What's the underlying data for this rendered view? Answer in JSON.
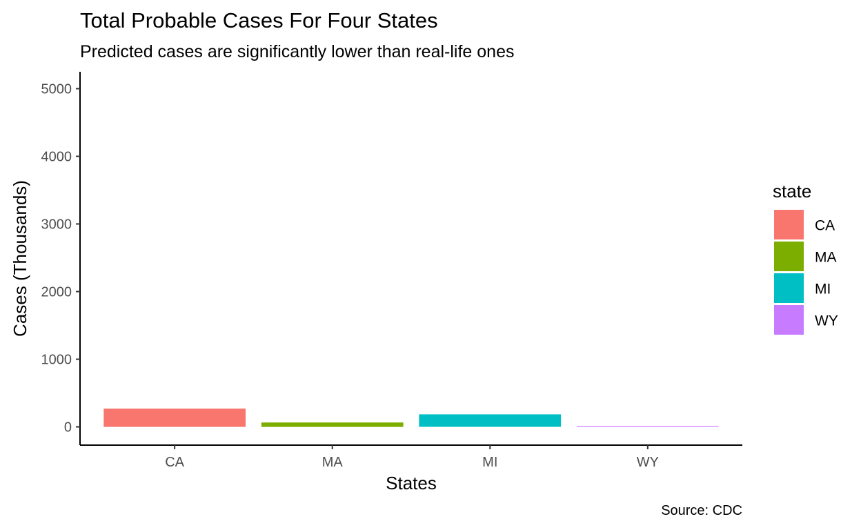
{
  "chart_data": {
    "type": "bar",
    "title": "Total Probable Cases For Four States",
    "subtitle": "Predicted cases are significantly lower than real-life ones",
    "caption": "Source: CDC",
    "xlabel": "States",
    "ylabel": "Cases (Thousands)",
    "categories": [
      "CA",
      "MA",
      "MI",
      "WY"
    ],
    "values": [
      270,
      65,
      185,
      12
    ],
    "colors": [
      "#F8766D",
      "#7CAE00",
      "#00BFC4",
      "#C77CFF"
    ],
    "ylim": [
      -270,
      5250
    ],
    "yticks": [
      0,
      1000,
      2000,
      3000,
      4000,
      5000
    ],
    "grid": false,
    "legend": {
      "title": "state",
      "placement": "right",
      "entries": [
        "CA",
        "MA",
        "MI",
        "WY"
      ]
    }
  }
}
